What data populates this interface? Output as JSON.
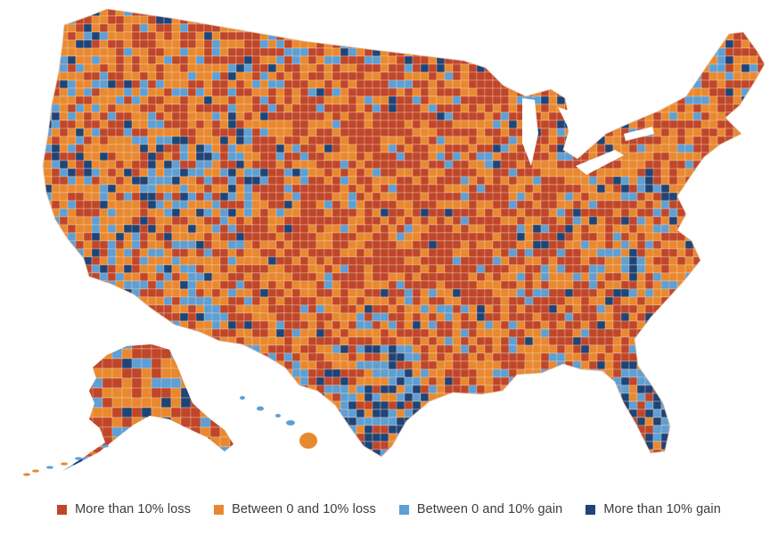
{
  "map": {
    "colors": {
      "more_than_10_loss": "#c0462a",
      "between_0_10_loss": "#e9892f",
      "between_0_10_gain": "#5e9fd4",
      "more_than_10_gain": "#1f4477"
    },
    "border_color": "#f3d6c4"
  },
  "legend": {
    "items": [
      {
        "label": "More than 10% loss",
        "color": "#c0462a"
      },
      {
        "label": "Between 0 and 10% loss",
        "color": "#e9892f"
      },
      {
        "label": "Between 0 and 10% gain",
        "color": "#5e9fd4"
      },
      {
        "label": "More than 10% gain",
        "color": "#1f4477"
      }
    ]
  }
}
